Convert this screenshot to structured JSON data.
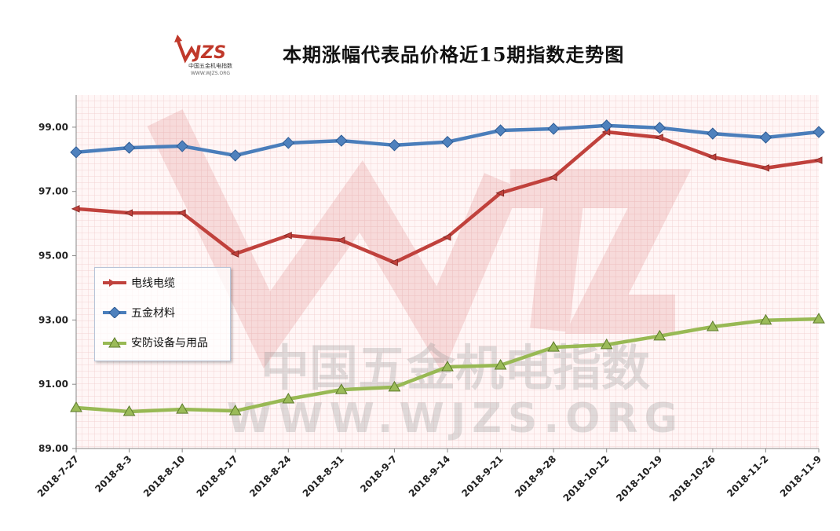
{
  "logo": {
    "text": "WJZS",
    "subtitle": "中国五金机电指数",
    "url": "WWW.WJZS.ORG"
  },
  "watermark": {
    "line1": "中国五金机电指数",
    "line2": "WWW.WJZS.ORG"
  },
  "chart_data": {
    "type": "line",
    "title": "本期涨幅代表品价格近15期指数走势图",
    "xlabel": "",
    "ylabel": "",
    "ylim": [
      89,
      100
    ],
    "yticks": [
      89,
      91,
      93,
      95,
      97,
      99
    ],
    "grid": true,
    "legend_position": "left-middle",
    "categories": [
      "2018-7-27",
      "2018-8-3",
      "2018-8-10",
      "2018-8-17",
      "2018-8-24",
      "2018-8-31",
      "2018-9-7",
      "2018-9-14",
      "2018-9-21",
      "2018-9-28",
      "2018-10-12",
      "2018-10-19",
      "2018-10-26",
      "2018-11-2",
      "2018-11-9"
    ],
    "series": [
      {
        "name": "电线电缆",
        "color": "#c0413c",
        "marker": "arrow",
        "values": [
          96.46,
          96.33,
          96.33,
          95.06,
          95.63,
          95.48,
          94.79,
          95.58,
          96.95,
          97.44,
          98.85,
          98.68,
          98.07,
          97.73,
          97.97
        ]
      },
      {
        "name": "五金材料",
        "color": "#4a7ebb",
        "marker": "diamond",
        "values": [
          98.22,
          98.36,
          98.41,
          98.12,
          98.51,
          98.58,
          98.44,
          98.54,
          98.9,
          98.95,
          99.05,
          98.98,
          98.8,
          98.68,
          98.85
        ]
      },
      {
        "name": "安防设备与用品",
        "color": "#98b954",
        "marker": "triangle",
        "values": [
          90.27,
          90.15,
          90.22,
          90.17,
          90.54,
          90.83,
          90.91,
          91.54,
          91.59,
          92.15,
          92.23,
          92.5,
          92.79,
          92.99,
          93.03
        ]
      }
    ]
  }
}
